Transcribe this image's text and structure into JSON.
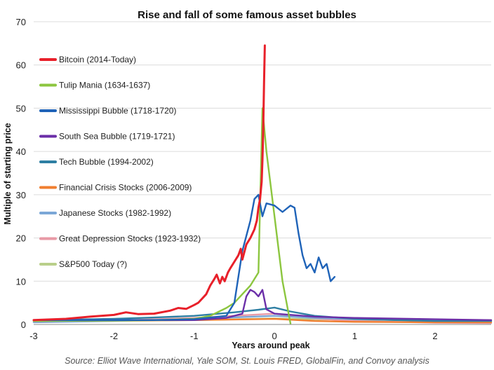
{
  "chart_data": {
    "type": "line",
    "title": "Rise and fall of some famous asset bubbles",
    "xlabel": "Years around peak",
    "ylabel": "Multiple of starting price",
    "xlim": [
      -3,
      2.7
    ],
    "ylim": [
      0,
      70
    ],
    "xticks": [
      -3,
      -2,
      -1,
      0,
      1,
      2
    ],
    "xtick_labels": [
      "-3",
      "-2",
      "-1",
      "0",
      "1",
      "2"
    ],
    "yticks": [
      0,
      10,
      20,
      30,
      40,
      50,
      60,
      70
    ],
    "ytick_labels": [
      "0",
      "10",
      "20",
      "30",
      "40",
      "50",
      "60",
      "70"
    ],
    "grid": "horizontal",
    "legend_position": "top-left",
    "source": "Source: Elliot Wave International, Yale SOM, St. Louis FRED, GlobalFin, and Convoy analysis",
    "series": [
      {
        "name": "Bitcoin (2014-Today)",
        "color": "#e8202a",
        "x": [
          -3,
          -2.6,
          -2.3,
          -2.0,
          -1.85,
          -1.7,
          -1.5,
          -1.3,
          -1.2,
          -1.1,
          -1.0,
          -0.95,
          -0.9,
          -0.85,
          -0.8,
          -0.75,
          -0.72,
          -0.68,
          -0.65,
          -0.62,
          -0.58,
          -0.55,
          -0.5,
          -0.45,
          -0.42,
          -0.4,
          -0.35,
          -0.3,
          -0.25,
          -0.22,
          -0.2,
          -0.18,
          -0.16,
          -0.15,
          -0.14,
          -0.13,
          -0.12
        ],
        "y": [
          1,
          1.3,
          1.8,
          2.2,
          2.8,
          2.4,
          2.5,
          3.2,
          3.8,
          3.6,
          4.5,
          5.0,
          6.0,
          7.0,
          9.0,
          10.5,
          11.5,
          9.5,
          11.0,
          10.0,
          12.0,
          13.0,
          14.5,
          16.0,
          17.5,
          15.0,
          18.5,
          20.0,
          22.0,
          24.0,
          27.0,
          29.0,
          33.0,
          38.0,
          45.0,
          56.0,
          64.5
        ]
      },
      {
        "name": "Tulip Mania (1634-1637)",
        "color": "#8cc63f",
        "x": [
          -3,
          -2.0,
          -1.5,
          -1.0,
          -0.8,
          -0.6,
          -0.5,
          -0.3,
          -0.2,
          -0.15,
          -0.1,
          0.0,
          0.1,
          0.2
        ],
        "y": [
          0.8,
          0.9,
          1.0,
          1.3,
          2.0,
          3.8,
          5.0,
          9.0,
          12.0,
          50.0,
          40.0,
          25.0,
          10.0,
          0.2
        ]
      },
      {
        "name": "Mississippi Bubble (1718-1720)",
        "color": "#1f63b8",
        "x": [
          -3,
          -1.5,
          -1.0,
          -0.6,
          -0.5,
          -0.4,
          -0.3,
          -0.25,
          -0.2,
          -0.15,
          -0.1,
          0.0,
          0.1,
          0.2,
          0.25,
          0.3,
          0.35,
          0.4,
          0.45,
          0.5,
          0.55,
          0.6,
          0.65,
          0.7,
          0.75
        ],
        "y": [
          1,
          1.0,
          1.2,
          2.0,
          5.0,
          17.0,
          24.0,
          29.0,
          30.0,
          25.0,
          28.0,
          27.5,
          26.0,
          27.5,
          27.0,
          21.0,
          16.0,
          13.0,
          14.0,
          12.0,
          15.5,
          13.0,
          14.0,
          10.0,
          11.0
        ]
      },
      {
        "name": "South Sea Bubble (1719-1721)",
        "color": "#6b2fa8",
        "x": [
          -3,
          -1.0,
          -0.6,
          -0.4,
          -0.35,
          -0.3,
          -0.25,
          -0.2,
          -0.15,
          -0.1,
          0.0,
          0.5,
          1.0,
          2.0,
          2.7
        ],
        "y": [
          1,
          1.0,
          1.5,
          2.5,
          6.5,
          8.0,
          7.5,
          6.5,
          8.0,
          3.5,
          2.5,
          1.8,
          1.5,
          1.2,
          1.0
        ]
      },
      {
        "name": "Tech Bubble (1994-2002)",
        "color": "#2e7fa3",
        "x": [
          -3,
          -2.0,
          -1.5,
          -1.0,
          -0.5,
          -0.2,
          0.0,
          0.2,
          0.5,
          1.0,
          1.5,
          2.0,
          2.7
        ],
        "y": [
          1,
          1.3,
          1.6,
          2.0,
          2.8,
          3.4,
          3.9,
          3.0,
          2.0,
          1.3,
          1.0,
          0.8,
          0.8
        ]
      },
      {
        "name": "Financial Crisis Stocks (2006-2009)",
        "color": "#f07f30",
        "x": [
          -3,
          -1.0,
          0.0,
          0.5,
          1.0,
          2.0,
          2.7
        ],
        "y": [
          0.8,
          1.0,
          1.3,
          0.8,
          0.6,
          0.5,
          0.5
        ]
      },
      {
        "name": "Japanese Stocks (1982-1992)",
        "color": "#7ba7d7",
        "x": [
          -3,
          -2.0,
          -1.0,
          0.0,
          0.5,
          1.0,
          2.0,
          2.7
        ],
        "y": [
          0.5,
          0.8,
          1.3,
          2.0,
          1.5,
          1.2,
          0.9,
          0.8
        ]
      },
      {
        "name": "Great Depression Stocks (1923-1932)",
        "color": "#e89aa6",
        "x": [
          -3,
          -2.0,
          -1.0,
          0.0,
          0.5,
          1.0,
          2.0,
          2.7
        ],
        "y": [
          0.6,
          0.9,
          1.5,
          2.5,
          1.4,
          0.8,
          0.4,
          0.3
        ]
      },
      {
        "name": "S&P500 Today (?)",
        "color": "#b9cf8a",
        "x": [
          -3,
          -2.0,
          -1.0,
          0.0,
          0.5,
          1.0,
          2.0,
          2.7
        ],
        "y": [
          0.6,
          0.8,
          1.0,
          1.4,
          1.2,
          1.1,
          1.0,
          1.0
        ]
      }
    ]
  }
}
